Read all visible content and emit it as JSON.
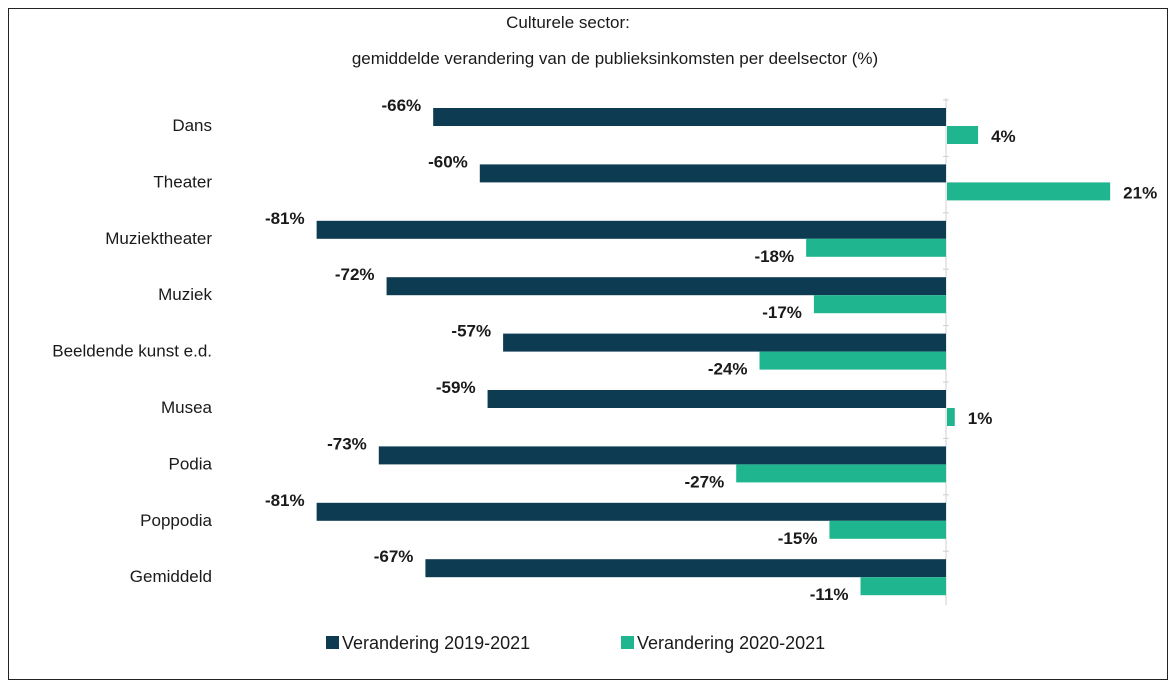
{
  "chart_data": {
    "type": "bar",
    "orientation": "horizontal",
    "title": "Culturele sector:",
    "subtitle": "gemiddelde verandering van de publieksinkomsten per deelsector (%)",
    "categories": [
      "Dans",
      "Theater",
      "Muziektheater",
      "Muziek",
      "Beeldende kunst e.d.",
      "Musea",
      "Podia",
      "Poppodia",
      "Gemiddeld"
    ],
    "series": [
      {
        "name": "Verandering 2019-2021",
        "color": "#0d3b52",
        "values": [
          -66,
          -60,
          -81,
          -72,
          -57,
          -59,
          -73,
          -81,
          -67
        ],
        "labels": [
          "-66%",
          "-60%",
          "-81%",
          "-72%",
          "-57%",
          "-59%",
          "-73%",
          "-81%",
          "-67%"
        ]
      },
      {
        "name": "Verandering 2020-2021",
        "color": "#1fb58f",
        "values": [
          4,
          21,
          -18,
          -17,
          -24,
          1,
          -27,
          -15,
          -11
        ],
        "labels": [
          "4%",
          "21%",
          "-18%",
          "-17%",
          "-24%",
          "1%",
          "-27%",
          "-15%",
          "-11%"
        ]
      }
    ],
    "legend": "bottom",
    "grid": false
  }
}
